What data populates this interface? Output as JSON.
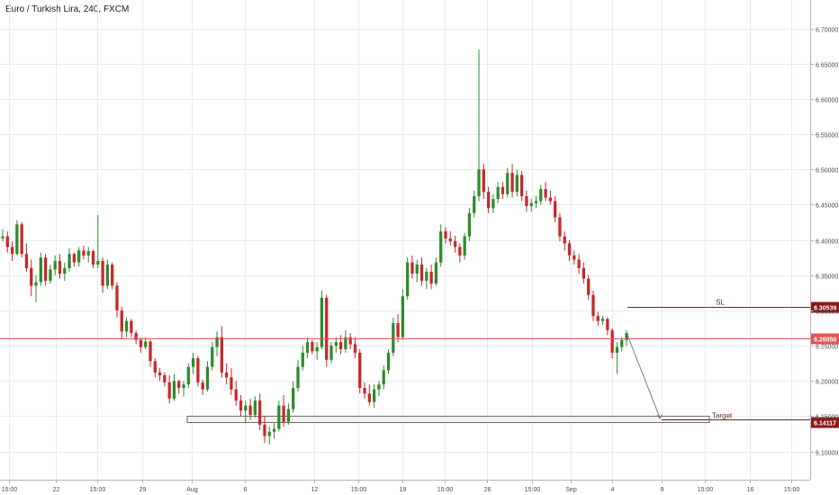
{
  "header": {
    "title": "Euro / Turkish Lira, 240, FXCM"
  },
  "colors": {
    "up": "#2e8b2e",
    "down": "#c8272a",
    "grid": "#e8ebef",
    "axis_text": "#4a4a4a",
    "price_line": "#e05555",
    "sl_line": "#7a1f1f",
    "target_fill": "#8b1a1a",
    "target_box": "#d6d6d6"
  },
  "chart_data": {
    "type": "candlestick",
    "symbol": "Euro / Turkish Lira",
    "timeframe": "240",
    "source": "FXCM",
    "ylim": [
      6.07,
      6.73
    ],
    "y_ticks": [
      "6.10000",
      "6.15000",
      "6.20000",
      "6.25000",
      "6.30000",
      "6.35000",
      "6.40000",
      "6.45000",
      "6.50000",
      "6.55000",
      "6.60000",
      "6.65000",
      "6.70000"
    ],
    "x_ticks": [
      "15:00",
      "22",
      "15:00",
      "29",
      "Aug",
      "6",
      "12",
      "15:00",
      "19",
      "15:00",
      "26",
      "15:00",
      "Sep",
      "4",
      "9",
      "15:00",
      "16",
      "15:00"
    ],
    "current_price": "6.26050",
    "stop_loss": {
      "label": "SL",
      "value": "6.30539"
    },
    "target": {
      "label": "Target",
      "value": "6.14117"
    },
    "target_zone": [
      6.141,
      6.15
    ],
    "projection": {
      "from": 6.265,
      "to": 6.148
    },
    "candles": [
      [
        6.402,
        6.415,
        6.398,
        6.405
      ],
      [
        6.405,
        6.412,
        6.382,
        6.39
      ],
      [
        6.39,
        6.398,
        6.37,
        6.38
      ],
      [
        6.38,
        6.428,
        6.378,
        6.422
      ],
      [
        6.422,
        6.425,
        6.375,
        6.38
      ],
      [
        6.38,
        6.395,
        6.355,
        6.36
      ],
      [
        6.36,
        6.372,
        6.32,
        6.335
      ],
      [
        6.335,
        6.35,
        6.312,
        6.34
      ],
      [
        6.34,
        6.382,
        6.335,
        6.375
      ],
      [
        6.375,
        6.38,
        6.335,
        6.342
      ],
      [
        6.342,
        6.365,
        6.338,
        6.358
      ],
      [
        6.358,
        6.378,
        6.35,
        6.37
      ],
      [
        6.37,
        6.38,
        6.345,
        6.352
      ],
      [
        6.352,
        6.368,
        6.342,
        6.36
      ],
      [
        6.36,
        6.388,
        6.355,
        6.38
      ],
      [
        6.38,
        6.382,
        6.362,
        6.368
      ],
      [
        6.368,
        6.39,
        6.362,
        6.385
      ],
      [
        6.385,
        6.392,
        6.372,
        6.378
      ],
      [
        6.378,
        6.39,
        6.368,
        6.384
      ],
      [
        6.384,
        6.386,
        6.36,
        6.365
      ],
      [
        6.365,
        6.435,
        6.36,
        6.37
      ],
      [
        6.37,
        6.375,
        6.325,
        6.335
      ],
      [
        6.335,
        6.372,
        6.33,
        6.365
      ],
      [
        6.365,
        6.368,
        6.33,
        6.335
      ],
      [
        6.335,
        6.34,
        6.29,
        6.3
      ],
      [
        6.3,
        6.305,
        6.26,
        6.27
      ],
      [
        6.27,
        6.29,
        6.262,
        6.285
      ],
      [
        6.285,
        6.288,
        6.262,
        6.268
      ],
      [
        6.268,
        6.272,
        6.252,
        6.258
      ],
      [
        6.258,
        6.262,
        6.24,
        6.248
      ],
      [
        6.248,
        6.262,
        6.245,
        6.256
      ],
      [
        6.256,
        6.258,
        6.22,
        6.228
      ],
      [
        6.228,
        6.232,
        6.205,
        6.212
      ],
      [
        6.212,
        6.218,
        6.2,
        6.208
      ],
      [
        6.208,
        6.212,
        6.192,
        6.198
      ],
      [
        6.198,
        6.208,
        6.168,
        6.175
      ],
      [
        6.175,
        6.21,
        6.172,
        6.2
      ],
      [
        6.2,
        6.202,
        6.182,
        6.19
      ],
      [
        6.19,
        6.2,
        6.178,
        6.195
      ],
      [
        6.195,
        6.225,
        6.19,
        6.22
      ],
      [
        6.22,
        6.24,
        6.21,
        6.232
      ],
      [
        6.232,
        6.235,
        6.192,
        6.198
      ],
      [
        6.198,
        6.202,
        6.18,
        6.188
      ],
      [
        6.188,
        6.228,
        6.185,
        6.22
      ],
      [
        6.22,
        6.255,
        6.215,
        6.248
      ],
      [
        6.248,
        6.27,
        6.235,
        6.262
      ],
      [
        6.262,
        6.278,
        6.205,
        6.212
      ],
      [
        6.212,
        6.225,
        6.195,
        6.205
      ],
      [
        6.205,
        6.218,
        6.18,
        6.188
      ],
      [
        6.188,
        6.2,
        6.165,
        6.172
      ],
      [
        6.172,
        6.18,
        6.15,
        6.158
      ],
      [
        6.158,
        6.172,
        6.14,
        6.165
      ],
      [
        6.165,
        6.175,
        6.145,
        6.152
      ],
      [
        6.152,
        6.178,
        6.148,
        6.172
      ],
      [
        6.172,
        6.182,
        6.13,
        6.138
      ],
      [
        6.138,
        6.15,
        6.112,
        6.122
      ],
      [
        6.122,
        6.135,
        6.11,
        6.128
      ],
      [
        6.128,
        6.14,
        6.118,
        6.132
      ],
      [
        6.132,
        6.172,
        6.128,
        6.165
      ],
      [
        6.165,
        6.18,
        6.135,
        6.142
      ],
      [
        6.142,
        6.168,
        6.138,
        6.16
      ],
      [
        6.16,
        6.2,
        6.155,
        6.19
      ],
      [
        6.19,
        6.23,
        6.185,
        6.22
      ],
      [
        6.22,
        6.25,
        6.215,
        6.24
      ],
      [
        6.24,
        6.262,
        6.232,
        6.255
      ],
      [
        6.255,
        6.258,
        6.238,
        6.242
      ],
      [
        6.242,
        6.255,
        6.23,
        6.248
      ],
      [
        6.248,
        6.328,
        6.245,
        6.318
      ],
      [
        6.318,
        6.322,
        6.22,
        6.23
      ],
      [
        6.23,
        6.255,
        6.225,
        6.25
      ],
      [
        6.25,
        6.262,
        6.24,
        6.255
      ],
      [
        6.255,
        6.265,
        6.238,
        6.245
      ],
      [
        6.245,
        6.272,
        6.24,
        6.262
      ],
      [
        6.262,
        6.268,
        6.245,
        6.252
      ],
      [
        6.252,
        6.262,
        6.232,
        6.24
      ],
      [
        6.24,
        6.245,
        6.182,
        6.19
      ],
      [
        6.19,
        6.198,
        6.175,
        6.182
      ],
      [
        6.182,
        6.195,
        6.165,
        6.17
      ],
      [
        6.17,
        6.195,
        6.162,
        6.188
      ],
      [
        6.188,
        6.2,
        6.178,
        6.195
      ],
      [
        6.195,
        6.222,
        6.188,
        6.215
      ],
      [
        6.215,
        6.245,
        6.21,
        6.24
      ],
      [
        6.24,
        6.29,
        6.235,
        6.282
      ],
      [
        6.282,
        6.295,
        6.255,
        6.262
      ],
      [
        6.262,
        6.33,
        6.258,
        6.32
      ],
      [
        6.32,
        6.375,
        6.315,
        6.368
      ],
      [
        6.368,
        6.378,
        6.345,
        6.352
      ],
      [
        6.352,
        6.372,
        6.34,
        6.365
      ],
      [
        6.365,
        6.375,
        6.335,
        6.342
      ],
      [
        6.342,
        6.36,
        6.33,
        6.355
      ],
      [
        6.355,
        6.365,
        6.33,
        6.338
      ],
      [
        6.338,
        6.375,
        6.335,
        6.368
      ],
      [
        6.368,
        6.422,
        6.362,
        6.412
      ],
      [
        6.412,
        6.418,
        6.395,
        6.402
      ],
      [
        6.402,
        6.412,
        6.392,
        6.398
      ],
      [
        6.398,
        6.406,
        6.382,
        6.39
      ],
      [
        6.39,
        6.395,
        6.368,
        6.378
      ],
      [
        6.378,
        6.41,
        6.372,
        6.405
      ],
      [
        6.405,
        6.445,
        6.398,
        6.438
      ],
      [
        6.438,
        6.47,
        6.432,
        6.462
      ],
      [
        6.462,
        6.67,
        6.455,
        6.5
      ],
      [
        6.5,
        6.508,
        6.458,
        6.468
      ],
      [
        6.468,
        6.475,
        6.438,
        6.445
      ],
      [
        6.445,
        6.465,
        6.438,
        6.458
      ],
      [
        6.458,
        6.482,
        6.452,
        6.475
      ],
      [
        6.475,
        6.482,
        6.458,
        6.465
      ],
      [
        6.465,
        6.502,
        6.46,
        6.495
      ],
      [
        6.495,
        6.508,
        6.46,
        6.468
      ],
      [
        6.468,
        6.5,
        6.462,
        6.492
      ],
      [
        6.492,
        6.498,
        6.455,
        6.462
      ],
      [
        6.462,
        6.47,
        6.44,
        6.448
      ],
      [
        6.448,
        6.458,
        6.44,
        6.452
      ],
      [
        6.452,
        6.462,
        6.445,
        6.455
      ],
      [
        6.455,
        6.478,
        6.45,
        6.472
      ],
      [
        6.472,
        6.482,
        6.455,
        6.46
      ],
      [
        6.46,
        6.47,
        6.45,
        6.455
      ],
      [
        6.455,
        6.462,
        6.425,
        6.432
      ],
      [
        6.432,
        6.438,
        6.398,
        6.405
      ],
      [
        6.405,
        6.412,
        6.385,
        6.395
      ],
      [
        6.395,
        6.4,
        6.37,
        6.378
      ],
      [
        6.378,
        6.385,
        6.365,
        6.372
      ],
      [
        6.372,
        6.38,
        6.352,
        6.36
      ],
      [
        6.36,
        6.368,
        6.338,
        6.345
      ],
      [
        6.345,
        6.35,
        6.315,
        6.322
      ],
      [
        6.322,
        6.328,
        6.285,
        6.292
      ],
      [
        6.292,
        6.298,
        6.278,
        6.285
      ],
      [
        6.285,
        6.292,
        6.28,
        6.288
      ],
      [
        6.288,
        6.29,
        6.265,
        6.272
      ],
      [
        6.272,
        6.275,
        6.232,
        6.24
      ],
      [
        6.24,
        6.255,
        6.21,
        6.248
      ],
      [
        6.248,
        6.262,
        6.242,
        6.258
      ],
      [
        6.258,
        6.272,
        6.25,
        6.268
      ]
    ]
  }
}
